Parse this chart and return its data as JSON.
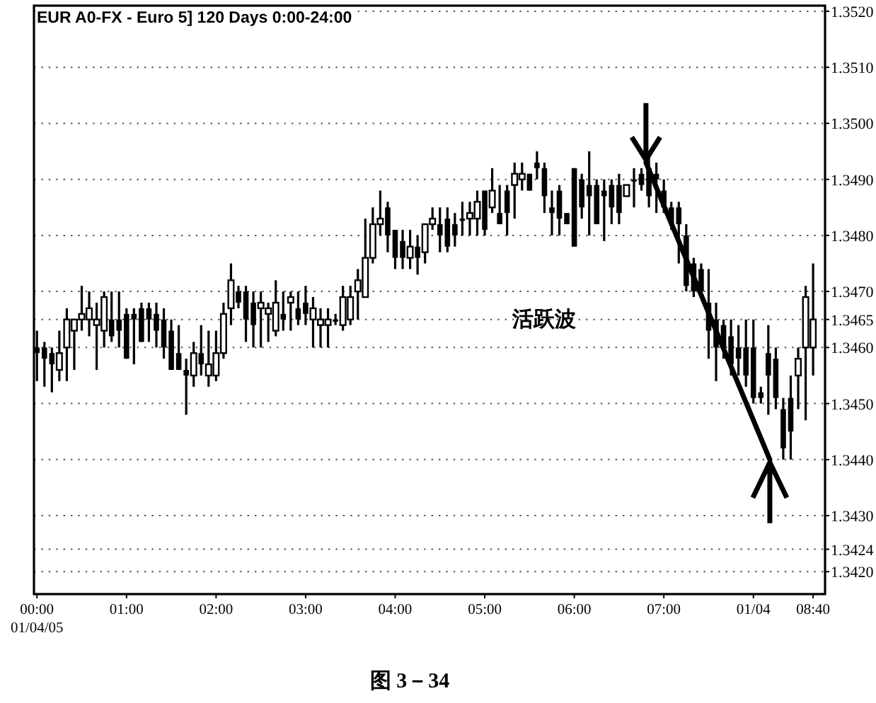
{
  "chart_data": {
    "type": "candlestick",
    "title": "EUR A0-FX - Euro 5] 120 Days 0:00-24:00",
    "x": [
      "--01-04T00:00",
      "--01-04T00:05",
      "--01-04T00:10",
      "--01-04T00:15",
      "--01-04T00:20",
      "--01-04T00:25",
      "--01-04T00:30",
      "--01-04T00:35",
      "--01-04T00:40",
      "--01-04T00:45",
      "--01-04T00:50",
      "--01-04T00:55",
      "--01-04T01:00",
      "--01-04T01:05",
      "--01-04T01:10",
      "--01-04T01:15",
      "--01-04T01:20",
      "--01-04T01:25",
      "--01-04T01:30",
      "--01-04T01:35",
      "--01-04T01:40",
      "--01-04T01:45",
      "--01-04T01:50",
      "--01-04T01:55",
      "--01-04T02:00",
      "--01-04T02:05",
      "--01-04T02:10",
      "--01-04T02:15",
      "--01-04T02:20",
      "--01-04T02:25",
      "--01-04T02:30",
      "--01-04T02:35",
      "--01-04T02:40",
      "--01-04T02:45",
      "--01-04T02:50",
      "--01-04T02:55",
      "--01-04T03:00",
      "--01-04T03:05",
      "--01-04T03:10",
      "--01-04T03:15",
      "--01-04T03:20",
      "--01-04T03:25",
      "--01-04T03:30",
      "--01-04T03:35",
      "--01-04T03:40",
      "--01-04T03:45",
      "--01-04T03:50",
      "--01-04T03:55",
      "--01-04T04:00",
      "--01-04T04:05",
      "--01-04T04:10",
      "--01-04T04:15",
      "--01-04T04:20",
      "--01-04T04:25",
      "--01-04T04:30",
      "--01-04T04:35",
      "--01-04T04:40",
      "--01-04T04:45",
      "--01-04T04:50",
      "--01-04T04:55",
      "--01-04T05:00",
      "--01-04T05:05",
      "--01-04T05:10",
      "--01-04T05:15",
      "--01-04T05:20",
      "--01-04T05:25",
      "--01-04T05:30",
      "--01-04T05:35",
      "--01-04T05:40",
      "--01-04T05:45",
      "--01-04T05:50",
      "--01-04T05:55",
      "--01-04T06:00",
      "--01-04T06:05",
      "--01-04T06:10",
      "--01-04T06:15",
      "--01-04T06:20",
      "--01-04T06:25",
      "--01-04T06:30",
      "--01-04T06:35",
      "--01-04T06:40",
      "--01-04T06:45",
      "--01-04T06:50",
      "--01-04T06:55",
      "--01-04T07:00",
      "--01-04T07:05",
      "--01-04T07:10",
      "--01-04T07:15",
      "--01-04T07:20",
      "--01-04T07:25",
      "--01-04T07:30",
      "--01-04T07:35",
      "--01-04T07:40",
      "--01-04T07:45",
      "--01-04T07:50",
      "--01-04T07:55",
      "--01-04T08:00",
      "--01-04T08:05",
      "--01-04T08:10",
      "--01-04T08:15",
      "--01-04T08:20",
      "--01-04T08:25",
      "--01-04T08:30",
      "--01-04T08:35",
      "--01-04T08:40"
    ],
    "ohlc": [
      [
        1.346,
        1.3463,
        1.3454,
        1.3459
      ],
      [
        1.346,
        1.3461,
        1.3453,
        1.3458
      ],
      [
        1.3459,
        1.346,
        1.3452,
        1.3457
      ],
      [
        1.3456,
        1.3463,
        1.3454,
        1.3459
      ],
      [
        1.346,
        1.3467,
        1.3454,
        1.3465
      ],
      [
        1.3463,
        1.3465,
        1.3456,
        1.3465
      ],
      [
        1.3465,
        1.3471,
        1.3463,
        1.3466
      ],
      [
        1.3465,
        1.347,
        1.3462,
        1.3467
      ],
      [
        1.3464,
        1.3468,
        1.3456,
        1.3465
      ],
      [
        1.3463,
        1.347,
        1.346,
        1.3469
      ],
      [
        1.3465,
        1.347,
        1.3461,
        1.3462
      ],
      [
        1.3465,
        1.347,
        1.346,
        1.3463
      ],
      [
        1.3466,
        1.3467,
        1.3458,
        1.3458
      ],
      [
        1.3466,
        1.3467,
        1.3457,
        1.3465
      ],
      [
        1.3467,
        1.3468,
        1.3461,
        1.3461
      ],
      [
        1.3467,
        1.3468,
        1.3461,
        1.3465
      ],
      [
        1.3466,
        1.3468,
        1.346,
        1.3463
      ],
      [
        1.3465,
        1.3467,
        1.3458,
        1.346
      ],
      [
        1.3463,
        1.3465,
        1.3456,
        1.3456
      ],
      [
        1.3459,
        1.3464,
        1.3456,
        1.3456
      ],
      [
        1.3456,
        1.3458,
        1.3448,
        1.3455
      ],
      [
        1.3455,
        1.3461,
        1.3453,
        1.3459
      ],
      [
        1.3459,
        1.3464,
        1.3455,
        1.3457
      ],
      [
        1.3455,
        1.3463,
        1.3453,
        1.3457
      ],
      [
        1.3455,
        1.3463,
        1.3454,
        1.3459
      ],
      [
        1.3459,
        1.3468,
        1.3458,
        1.3466
      ],
      [
        1.3467,
        1.3475,
        1.3464,
        1.3472
      ],
      [
        1.347,
        1.3471,
        1.3467,
        1.3468
      ],
      [
        1.347,
        1.3471,
        1.3461,
        1.3465
      ],
      [
        1.3468,
        1.347,
        1.346,
        1.3464
      ],
      [
        1.3467,
        1.347,
        1.346,
        1.3468
      ],
      [
        1.3466,
        1.3468,
        1.3461,
        1.3467
      ],
      [
        1.3463,
        1.3472,
        1.3462,
        1.3468
      ],
      [
        1.3466,
        1.347,
        1.3463,
        1.3465
      ],
      [
        1.3468,
        1.347,
        1.3463,
        1.3469
      ],
      [
        1.3467,
        1.347,
        1.3464,
        1.3465
      ],
      [
        1.3468,
        1.3471,
        1.3464,
        1.3466
      ],
      [
        1.3465,
        1.3469,
        1.346,
        1.3467
      ],
      [
        1.3464,
        1.3467,
        1.346,
        1.3465
      ],
      [
        1.3464,
        1.3467,
        1.346,
        1.3465
      ],
      [
        1.3465,
        1.3466,
        1.3464,
        1.3465
      ],
      [
        1.3464,
        1.3471,
        1.3463,
        1.3469
      ],
      [
        1.3465,
        1.3471,
        1.3464,
        1.3469
      ],
      [
        1.347,
        1.3474,
        1.3465,
        1.3472
      ],
      [
        1.3469,
        1.3483,
        1.3469,
        1.3476
      ],
      [
        1.3476,
        1.3485,
        1.3475,
        1.3482
      ],
      [
        1.3482,
        1.3488,
        1.348,
        1.3483
      ],
      [
        1.3485,
        1.3486,
        1.3477,
        1.348
      ],
      [
        1.3481,
        1.3481,
        1.3474,
        1.3476
      ],
      [
        1.3479,
        1.3481,
        1.3474,
        1.3476
      ],
      [
        1.3476,
        1.3481,
        1.3474,
        1.3478
      ],
      [
        1.3478,
        1.348,
        1.3473,
        1.3476
      ],
      [
        1.3477,
        1.3482,
        1.3475,
        1.3482
      ],
      [
        1.3482,
        1.3485,
        1.3481,
        1.3483
      ],
      [
        1.3482,
        1.3485,
        1.3477,
        1.348
      ],
      [
        1.3483,
        1.3485,
        1.3477,
        1.3478
      ],
      [
        1.3482,
        1.3484,
        1.3478,
        1.348
      ],
      [
        1.3483,
        1.3486,
        1.348,
        1.3483
      ],
      [
        1.3483,
        1.3486,
        1.348,
        1.3484
      ],
      [
        1.3483,
        1.3488,
        1.348,
        1.3486
      ],
      [
        1.3488,
        1.3488,
        1.348,
        1.3481
      ],
      [
        1.3485,
        1.3492,
        1.3484,
        1.3488
      ],
      [
        1.3484,
        1.3489,
        1.3482,
        1.3482
      ],
      [
        1.3488,
        1.3489,
        1.348,
        1.3484
      ],
      [
        1.3489,
        1.3493,
        1.3483,
        1.3491
      ],
      [
        1.349,
        1.3493,
        1.3488,
        1.3491
      ],
      [
        1.3491,
        1.3491,
        1.3488,
        1.3488
      ],
      [
        1.3493,
        1.3495,
        1.349,
        1.3492
      ],
      [
        1.3492,
        1.3493,
        1.3484,
        1.3487
      ],
      [
        1.3485,
        1.3488,
        1.348,
        1.3484
      ],
      [
        1.3488,
        1.3489,
        1.348,
        1.3483
      ],
      [
        1.3484,
        1.3484,
        1.3482,
        1.3482
      ],
      [
        1.3492,
        1.3492,
        1.3478,
        1.3478
      ],
      [
        1.349,
        1.3491,
        1.3483,
        1.3485
      ],
      [
        1.3489,
        1.3495,
        1.348,
        1.3487
      ],
      [
        1.3489,
        1.349,
        1.3482,
        1.3482
      ],
      [
        1.3488,
        1.349,
        1.3479,
        1.3487
      ],
      [
        1.3489,
        1.349,
        1.3482,
        1.3485
      ],
      [
        1.3489,
        1.3491,
        1.3482,
        1.3484
      ],
      [
        1.3487,
        1.3489,
        1.3487,
        1.3489
      ],
      [
        1.349,
        1.3492,
        1.3485,
        1.349
      ],
      [
        1.3491,
        1.3492,
        1.3488,
        1.3489
      ],
      [
        1.3492,
        1.3495,
        1.3485,
        1.3487
      ],
      [
        1.3491,
        1.3493,
        1.3484,
        1.349
      ],
      [
        1.3488,
        1.349,
        1.3484,
        1.3485
      ],
      [
        1.3485,
        1.3486,
        1.3481,
        1.3482
      ],
      [
        1.3485,
        1.3486,
        1.3475,
        1.3482
      ],
      [
        1.348,
        1.3482,
        1.347,
        1.3471
      ],
      [
        1.3475,
        1.3476,
        1.3469,
        1.347
      ],
      [
        1.3474,
        1.3475,
        1.347,
        1.347
      ],
      [
        1.3468,
        1.3474,
        1.3458,
        1.3463
      ],
      [
        1.3465,
        1.3468,
        1.3454,
        1.346
      ],
      [
        1.3464,
        1.3465,
        1.3458,
        1.346
      ],
      [
        1.3462,
        1.3465,
        1.3455,
        1.3457
      ],
      [
        1.346,
        1.3464,
        1.3455,
        1.3458
      ],
      [
        1.346,
        1.3465,
        1.3453,
        1.3455
      ],
      [
        1.346,
        1.3465,
        1.345,
        1.3451
      ],
      [
        1.3452,
        1.3453,
        1.345,
        1.3451
      ],
      [
        1.3459,
        1.3464,
        1.3448,
        1.3455
      ],
      [
        1.3458,
        1.346,
        1.3449,
        1.3451
      ],
      [
        1.3449,
        1.3451,
        1.344,
        1.3442
      ],
      [
        1.3451,
        1.3455,
        1.344,
        1.3445
      ],
      [
        1.3455,
        1.346,
        1.3449,
        1.3458
      ],
      [
        1.346,
        1.3471,
        1.3447,
        1.3469
      ],
      [
        1.346,
        1.3475,
        1.3455,
        1.3465
      ]
    ],
    "series": [
      {
        "type": "line",
        "color": "#000000",
        "x": [
          "--01-04T06:48",
          "--01-04T08:11"
        ],
        "values": [
          1.3493,
          1.344
        ]
      }
    ],
    "xlim": [
      "--01-03T23:58",
      "--01-04T08:48"
    ],
    "xticks": [
      {
        "value": "--01-04T00:00",
        "label": "00:00\n01/04/05"
      },
      {
        "value": "--01-04T01:00",
        "label": "01:00"
      },
      {
        "value": "--01-04T02:00",
        "label": "02:00"
      },
      {
        "value": "--01-04T03:00",
        "label": "03:00"
      },
      {
        "value": "--01-04T04:00",
        "label": "04:00"
      },
      {
        "value": "--01-04T05:00",
        "label": "05:00"
      },
      {
        "value": "--01-04T06:00",
        "label": "06:00"
      },
      {
        "value": "--01-04T07:00",
        "label": "07:00"
      },
      {
        "value": "--01-04T08:00",
        "label": "01/04"
      },
      {
        "value": "--01-04T08:40",
        "label": "08:40"
      }
    ],
    "ylim": [
      1.3416,
      1.3521
    ],
    "yticks": [
      {
        "value": 1.352,
        "label": "1.3520"
      },
      {
        "value": 1.351,
        "label": "1.3510"
      },
      {
        "value": 1.35,
        "label": "1.3500"
      },
      {
        "value": 1.349,
        "label": "1.3490"
      },
      {
        "value": 1.348,
        "label": "1.3480"
      },
      {
        "value": 1.347,
        "label": "1.3470"
      },
      {
        "value": 1.3465,
        "label": "1.3465"
      },
      {
        "value": 1.346,
        "label": "1.3460"
      },
      {
        "value": 1.345,
        "label": "1.3450"
      },
      {
        "value": 1.344,
        "label": "1.3440"
      },
      {
        "value": 1.343,
        "label": "1.3430"
      },
      {
        "value": 1.3424,
        "label": "1.3424"
      },
      {
        "value": 1.342,
        "label": "1.3420"
      }
    ],
    "grid": "y",
    "annotations": [
      "活跃波",
      "图 3－34"
    ]
  }
}
